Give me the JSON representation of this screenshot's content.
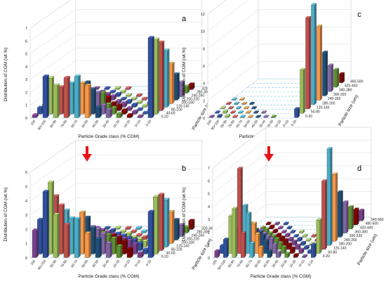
{
  "figure": {
    "arrow_color": "#e8141b"
  },
  "palette": [
    "#7a3f8c",
    "#2f4f9e",
    "#9bbb59",
    "#c0504d",
    "#4bacc6",
    "#f79646",
    "#1f4e79",
    "#8064a2",
    "#5f8f2f",
    "#7f0000"
  ],
  "chart_data": [
    {
      "type": "bar",
      "panel": "a",
      "ylabel": "Distribution of CGM (wt.%)",
      "xlabel": "Particle Grade class  (% CGM)",
      "zlabel": "Particle size (um)",
      "ylim": [
        0,
        7
      ],
      "yticks": [
        "0",
        "1",
        "2",
        "3",
        "4",
        "5",
        "6",
        "7"
      ],
      "grade_classes": [
        "100",
        "90<100",
        "80-90",
        "70-80",
        "60-70",
        "50-60",
        "40-50",
        "30-40",
        "20-30",
        "10-20",
        "0<10",
        "0-20"
      ],
      "size_classes": [
        "0-20",
        "40-60",
        "80-100",
        "120-140",
        "160-180",
        "200-220",
        "240-260",
        "280-300",
        "320-340"
      ],
      "values": [
        [
          0.2,
          0.5,
          0.5,
          0.9,
          0.6,
          0.4,
          0.3,
          0.2,
          0.1
        ],
        [
          3.2,
          2.8,
          1.6,
          1.4,
          0.7,
          0.5,
          0.3,
          0.2,
          0.1
        ],
        [
          2.5,
          2.1,
          1.5,
          1.0,
          0.7,
          0.4,
          0.3,
          0.1,
          0.1
        ],
        [
          3.1,
          2.4,
          2.0,
          1.2,
          0.6,
          0.4,
          0.2,
          0.1,
          0.1
        ],
        [
          3.2,
          2.4,
          2.2,
          1.4,
          0.7,
          0.4,
          0.2,
          0.1,
          0.1
        ],
        [
          2.5,
          1.9,
          1.4,
          1.1,
          0.5,
          0.3,
          0.2,
          0.1,
          0.1
        ],
        [
          0.8,
          0.7,
          0.5,
          0.3,
          0.2,
          0.1,
          0.1,
          0.0,
          0.0
        ],
        [
          0.6,
          0.5,
          0.4,
          0.3,
          0.2,
          0.1,
          0.1,
          0.0,
          0.0
        ],
        [
          0.3,
          0.3,
          0.2,
          0.2,
          0.1,
          0.1,
          0.0,
          0.0,
          0.0
        ],
        [
          0.2,
          0.2,
          0.1,
          0.1,
          0.1,
          0.0,
          0.0,
          0.0,
          0.0
        ],
        [
          0.1,
          0.1,
          0.1,
          0.1,
          0.0,
          0.0,
          0.0,
          0.0,
          0.0
        ],
        [
          6.2,
          5.8,
          5.3,
          4.4,
          3.1,
          2.0,
          1.1,
          0.5,
          0.4
        ]
      ]
    },
    {
      "type": "bar",
      "panel": "c",
      "ylabel": "Distribution of CGM (wt.%)",
      "xlabel": "Particle Grade class  (% CGM)",
      "zlabel": "Particle size (um)",
      "ylim": [
        0,
        12
      ],
      "yticks": [
        "0",
        "2",
        "4",
        "6",
        "8",
        "10",
        "12"
      ],
      "grade_classes": [
        "100",
        "90<100",
        "80-90",
        "70-80",
        "60-70",
        "50-60",
        "40-50",
        "30-40",
        "20-30",
        "10-20",
        "0<10",
        "0-20"
      ],
      "size_classes": [
        "0-20",
        "50-80",
        "120-140",
        "180-200",
        "240-260",
        "300-320",
        "340-380",
        "420-440",
        "460-500"
      ],
      "values": [
        [
          0.1,
          0.1,
          0.1,
          0.1,
          0.1,
          0.0,
          0.0,
          0.0,
          0.0
        ],
        [
          0.2,
          0.2,
          0.1,
          0.1,
          0.1,
          0.0,
          0.0,
          0.0,
          0.0
        ],
        [
          0.2,
          0.1,
          0.1,
          0.1,
          0.0,
          0.0,
          0.0,
          0.0,
          0.0
        ],
        [
          0.1,
          0.1,
          0.1,
          0.1,
          0.0,
          0.0,
          0.0,
          0.0,
          0.0
        ],
        [
          0.1,
          0.1,
          0.1,
          0.0,
          0.0,
          0.0,
          0.0,
          0.0,
          0.0
        ],
        [
          0.1,
          0.1,
          0.0,
          0.0,
          0.0,
          0.0,
          0.0,
          0.0,
          0.0
        ],
        [
          0.1,
          0.1,
          0.0,
          0.0,
          0.0,
          0.0,
          0.0,
          0.0,
          0.0
        ],
        [
          0.1,
          0.0,
          0.0,
          0.0,
          0.0,
          0.0,
          0.0,
          0.0,
          0.0
        ],
        [
          0.1,
          0.0,
          0.0,
          0.0,
          0.0,
          0.0,
          0.0,
          0.0,
          0.0
        ],
        [
          0.0,
          0.0,
          0.0,
          0.0,
          0.0,
          0.0,
          0.0,
          0.0,
          0.0
        ],
        [
          0.0,
          0.0,
          0.0,
          0.0,
          0.0,
          0.0,
          0.0,
          0.0,
          0.0
        ],
        [
          1.0,
          5.0,
          10.5,
          11.5,
          8.5,
          5.0,
          3.0,
          2.0,
          1.0
        ]
      ]
    },
    {
      "type": "bar",
      "panel": "b",
      "ylabel": "Distribution of CGM (wt.%)",
      "xlabel": "Particle Grade class  (% CGM)",
      "zlabel": "Particle size (um)",
      "ylim": [
        0,
        6
      ],
      "yticks": [
        "0",
        "1",
        "2",
        "3",
        "4",
        "5",
        "6"
      ],
      "grade_classes": [
        "100",
        "90<100",
        "80-90",
        "70-80",
        "60-70",
        "50-60",
        "40-50",
        "30-40",
        "20-30",
        "10-20",
        "0<10",
        "0-20"
      ],
      "size_classes": [
        "0-20",
        "40-60",
        "80-100",
        "120-140",
        "160-180",
        "200-220",
        "240-260",
        "280-300",
        "320-340"
      ],
      "values": [
        [
          1.9,
          2.4,
          1.3,
          0.9,
          0.6,
          0.4,
          0.3,
          0.2,
          0.1
        ],
        [
          4.6,
          5.0,
          3.8,
          2.3,
          1.5,
          0.9,
          0.5,
          0.3,
          0.2
        ],
        [
          3.0,
          3.4,
          2.8,
          1.8,
          1.2,
          0.7,
          0.4,
          0.2,
          0.1
        ],
        [
          2.3,
          2.5,
          2.0,
          1.4,
          0.9,
          0.6,
          0.3,
          0.2,
          0.1
        ],
        [
          2.7,
          2.9,
          2.3,
          1.4,
          0.9,
          0.5,
          0.3,
          0.2,
          0.1
        ],
        [
          1.7,
          1.8,
          1.5,
          1.0,
          0.6,
          0.4,
          0.2,
          0.1,
          0.1
        ],
        [
          1.3,
          1.4,
          1.1,
          0.8,
          0.5,
          0.3,
          0.2,
          0.1,
          0.1
        ],
        [
          1.0,
          1.1,
          0.9,
          0.6,
          0.4,
          0.2,
          0.1,
          0.1,
          0.0
        ],
        [
          0.8,
          0.9,
          0.7,
          0.5,
          0.3,
          0.2,
          0.1,
          0.1,
          0.0
        ],
        [
          0.6,
          0.7,
          0.5,
          0.4,
          0.2,
          0.1,
          0.1,
          0.0,
          0.0
        ],
        [
          0.3,
          0.3,
          0.2,
          0.2,
          0.1,
          0.1,
          0.0,
          0.0,
          0.0
        ],
        [
          3.2,
          4.0,
          3.9,
          3.3,
          2.2,
          1.4,
          0.8,
          0.4,
          0.6
        ]
      ]
    },
    {
      "type": "bar",
      "panel": "d",
      "ylabel": "Distribution of CGM (wt.%)",
      "xlabel": "Particle Grade class  (% CGM)",
      "zlabel": "Particle size (um)",
      "ylim": [
        0,
        7
      ],
      "yticks": [
        "0",
        "1",
        "2",
        "3",
        "4",
        "5",
        "6",
        "7"
      ],
      "grade_classes": [
        "100",
        "90<100",
        "80-90",
        "70-80",
        "60-70",
        "50-60",
        "40-50",
        "30-40",
        "20-30",
        "10-20",
        "0<10",
        "0-20"
      ],
      "size_classes": [
        "0-20",
        "60-80",
        "120-140",
        "180-200",
        "240-260",
        "300-320",
        "360-380",
        "420-440",
        "480-500",
        "540-560"
      ],
      "values": [
        [
          0.5,
          0.6,
          0.4,
          0.3,
          0.2,
          0.1,
          0.1,
          0.0,
          0.0,
          0.0
        ],
        [
          1.4,
          2.9,
          1.6,
          0.9,
          0.5,
          0.3,
          0.2,
          0.1,
          0.1,
          0.0
        ],
        [
          3.8,
          6.6,
          3.4,
          1.7,
          0.9,
          0.5,
          0.3,
          0.2,
          0.1,
          0.0
        ],
        [
          1.9,
          3.1,
          2.0,
          1.0,
          0.6,
          0.3,
          0.2,
          0.1,
          0.1,
          0.0
        ],
        [
          1.1,
          1.5,
          1.1,
          0.7,
          0.4,
          0.2,
          0.1,
          0.1,
          0.0,
          0.0
        ],
        [
          0.8,
          1.0,
          0.8,
          0.5,
          0.3,
          0.2,
          0.1,
          0.0,
          0.0,
          0.0
        ],
        [
          0.5,
          0.7,
          0.5,
          0.4,
          0.2,
          0.1,
          0.1,
          0.0,
          0.0,
          0.0
        ],
        [
          0.4,
          0.5,
          0.4,
          0.3,
          0.2,
          0.1,
          0.0,
          0.0,
          0.0,
          0.0
        ],
        [
          0.3,
          0.4,
          0.3,
          0.2,
          0.1,
          0.1,
          0.0,
          0.0,
          0.0,
          0.0
        ],
        [
          0.2,
          0.3,
          0.2,
          0.1,
          0.1,
          0.0,
          0.0,
          0.0,
          0.0,
          0.0
        ],
        [
          0.1,
          0.2,
          0.1,
          0.1,
          0.0,
          0.0,
          0.0,
          0.0,
          0.0,
          0.0
        ],
        [
          1.0,
          2.6,
          5.3,
          7.5,
          5.2,
          3.5,
          2.4,
          1.7,
          1.2,
          0.8
        ]
      ]
    }
  ]
}
